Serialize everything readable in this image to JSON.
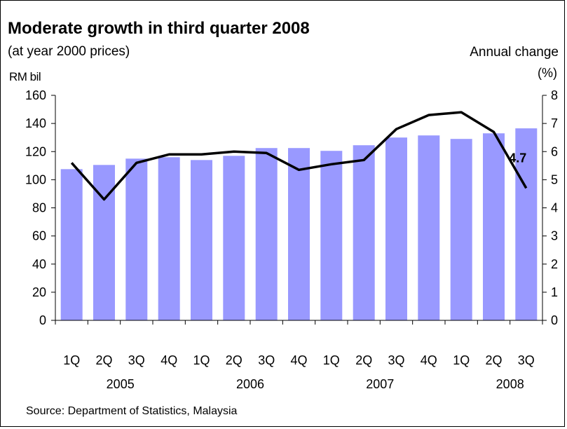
{
  "chart_data": {
    "type": "bar+line",
    "title": "Moderate growth in third quarter 2008",
    "subtitle": "(at year 2000 prices)",
    "y_left_label": "RM bil",
    "y_right_label": "Annual change",
    "y_right_unit": "(%)",
    "categories": [
      "1Q",
      "2Q",
      "3Q",
      "4Q",
      "1Q",
      "2Q",
      "3Q",
      "4Q",
      "1Q",
      "2Q",
      "3Q",
      "4Q",
      "1Q",
      "2Q",
      "3Q"
    ],
    "year_labels": [
      {
        "label": "2005",
        "index": 1.5
      },
      {
        "label": "2006",
        "index": 5.5
      },
      {
        "label": "2007",
        "index": 9.5
      },
      {
        "label": "2008",
        "index": 13.5
      }
    ],
    "bar_values": [
      107.5,
      110.5,
      115,
      116,
      114,
      117,
      122.5,
      122.5,
      120.5,
      124.5,
      130,
      131.5,
      129,
      133,
      136.5
    ],
    "line_values": [
      5.6,
      4.3,
      5.6,
      5.9,
      5.9,
      6.0,
      5.95,
      5.35,
      5.55,
      5.7,
      6.8,
      7.3,
      7.4,
      6.7,
      4.7
    ],
    "left_axis": {
      "min": 0,
      "max": 160,
      "ticks": [
        0,
        20,
        40,
        60,
        80,
        100,
        120,
        140,
        160
      ]
    },
    "right_axis": {
      "min": 0,
      "max": 8,
      "ticks": [
        0,
        1,
        2,
        3,
        4,
        5,
        6,
        7,
        8
      ]
    },
    "annotation": "4.7",
    "colors": {
      "bar": "#9999ff",
      "line": "#000000"
    },
    "grid": false
  },
  "source": "Source: Department of Statistics, Malaysia"
}
